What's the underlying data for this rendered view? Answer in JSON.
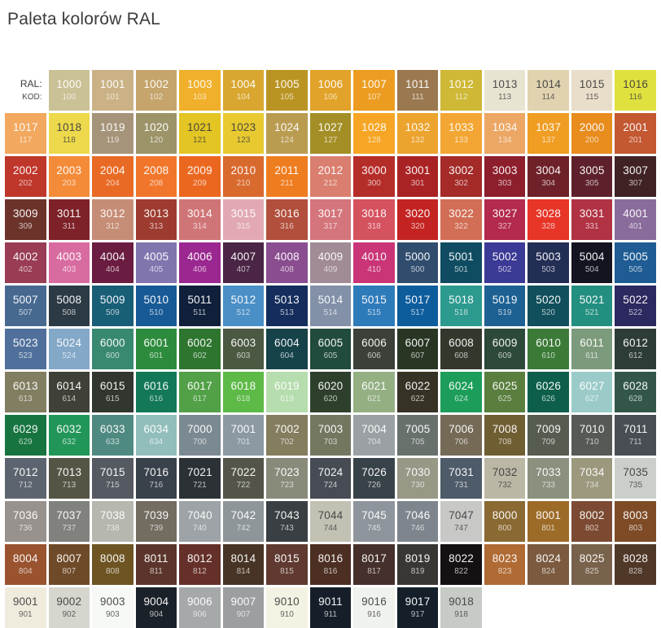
{
  "title": "Paleta kolorów RAL",
  "legend": {
    "ral_label": "RAL:",
    "kod_label": "KOD:"
  },
  "palette": {
    "rows": [
      [
        [
          "1000",
          "100",
          "#CBC196",
          0
        ],
        [
          "1001",
          "101",
          "#CAB286",
          0
        ],
        [
          "1002",
          "102",
          "#C5A56C",
          0
        ],
        [
          "1003",
          "103",
          "#F0B02B",
          0
        ],
        [
          "1004",
          "104",
          "#D9A730",
          0
        ],
        [
          "1005",
          "105",
          "#BA9423",
          0
        ],
        [
          "1006",
          "106",
          "#E2A32A",
          0
        ],
        [
          "1007",
          "107",
          "#EC9D21",
          0
        ],
        [
          "1011",
          "111",
          "#9B7950",
          0
        ],
        [
          "1012",
          "112",
          "#CEB836",
          0
        ],
        [
          "1013",
          "113",
          "#E8E4D2",
          1
        ],
        [
          "1014",
          "114",
          "#E1D3B0",
          1
        ],
        [
          "1015",
          "115",
          "#E8DEC9",
          1
        ],
        [
          "1016",
          "116",
          "#E0E13F",
          1
        ]
      ],
      [
        [
          "1017",
          "117",
          "#F2A85F",
          0
        ],
        [
          "1018",
          "118",
          "#EDD94B",
          1
        ],
        [
          "1019",
          "119",
          "#A59479",
          0
        ],
        [
          "1020",
          "120",
          "#9C9468",
          0
        ],
        [
          "1021",
          "121",
          "#E3C523",
          1
        ],
        [
          "1023",
          "123",
          "#E8CA30",
          1
        ],
        [
          "1024",
          "124",
          "#BA9C51",
          0
        ],
        [
          "1027",
          "127",
          "#A38F25",
          0
        ],
        [
          "1028",
          "128",
          "#F6A624",
          0
        ],
        [
          "1032",
          "132",
          "#ECA42F",
          0
        ],
        [
          "1033",
          "133",
          "#F3A633",
          0
        ],
        [
          "1034",
          "134",
          "#ECA765",
          0
        ],
        [
          "1037",
          "137",
          "#F09D23",
          0
        ],
        [
          "2000",
          "200",
          "#E88C1E",
          0
        ],
        [
          "2001",
          "201",
          "#C35831",
          0
        ]
      ],
      [
        [
          "2002",
          "202",
          "#BF362B",
          0
        ],
        [
          "2003",
          "203",
          "#F48B39",
          0
        ],
        [
          "2004",
          "204",
          "#E96A25",
          0
        ],
        [
          "2008",
          "208",
          "#F1762B",
          0
        ],
        [
          "2009",
          "209",
          "#EB671F",
          0
        ],
        [
          "2010",
          "210",
          "#D96A2E",
          0
        ],
        [
          "2011",
          "211",
          "#EE7D1F",
          0
        ],
        [
          "2012",
          "212",
          "#DA7F6F",
          0
        ],
        [
          "3000",
          "300",
          "#B52D29",
          0
        ],
        [
          "3001",
          "301",
          "#AA2324",
          0
        ],
        [
          "3002",
          "302",
          "#A42B28",
          0
        ],
        [
          "3003",
          "303",
          "#8D1F2C",
          0
        ],
        [
          "3004",
          "304",
          "#6E2128",
          0
        ],
        [
          "3005",
          "305",
          "#5E212B",
          0
        ],
        [
          "3007",
          "307",
          "#402225",
          0
        ]
      ],
      [
        [
          "3009",
          "309",
          "#6C332B",
          0
        ],
        [
          "3011",
          "311",
          "#7E2128",
          0
        ],
        [
          "3012",
          "312",
          "#C68D76",
          0
        ],
        [
          "3013",
          "313",
          "#9E3B30",
          0
        ],
        [
          "3014",
          "314",
          "#D07577",
          0
        ],
        [
          "3015",
          "315",
          "#E2A9B4",
          0
        ],
        [
          "3016",
          "316",
          "#B14F3C",
          0
        ],
        [
          "3017",
          "317",
          "#D4747B",
          0
        ],
        [
          "3018",
          "318",
          "#D5525F",
          0
        ],
        [
          "3020",
          "320",
          "#C32422",
          0
        ],
        [
          "3022",
          "322",
          "#D26E56",
          0
        ],
        [
          "3027",
          "327",
          "#B32A4D",
          0
        ],
        [
          "3028",
          "328",
          "#E73527",
          0
        ],
        [
          "3031",
          "331",
          "#B13243",
          0
        ],
        [
          "4001",
          "401",
          "#8A6C9C",
          0
        ]
      ],
      [
        [
          "4002",
          "402",
          "#993C54",
          0
        ],
        [
          "4003",
          "403",
          "#D86CA1",
          0
        ],
        [
          "4004",
          "404",
          "#6B1C41",
          0
        ],
        [
          "4005",
          "405",
          "#8175AE",
          0
        ],
        [
          "4006",
          "406",
          "#9B2790",
          0
        ],
        [
          "4007",
          "407",
          "#4A2545",
          0
        ],
        [
          "4008",
          "408",
          "#8A4D90",
          0
        ],
        [
          "4009",
          "409",
          "#A08B97",
          0
        ],
        [
          "4010",
          "410",
          "#C93577",
          0
        ],
        [
          "5000",
          "500",
          "#314D6E",
          0
        ],
        [
          "5001",
          "501",
          "#0F4C61",
          0
        ],
        [
          "5002",
          "502",
          "#3B3A96",
          0
        ],
        [
          "5003",
          "503",
          "#232E55",
          0
        ],
        [
          "5004",
          "504",
          "#131420",
          0
        ],
        [
          "5005",
          "505",
          "#1E5C93",
          0
        ]
      ],
      [
        [
          "5007",
          "507",
          "#476990",
          0
        ],
        [
          "5008",
          "508",
          "#2B3A44",
          0
        ],
        [
          "5009",
          "509",
          "#195E77",
          0
        ],
        [
          "5010",
          "510",
          "#185A96",
          0
        ],
        [
          "5011",
          "511",
          "#101F3A",
          0
        ],
        [
          "5012",
          "512",
          "#4A8FC6",
          0
        ],
        [
          "5013",
          "513",
          "#142D5C",
          0
        ],
        [
          "5014",
          "514",
          "#8290A8",
          0
        ],
        [
          "5015",
          "515",
          "#2E7BBA",
          0
        ],
        [
          "5017",
          "517",
          "#0D5D9D",
          0
        ],
        [
          "5018",
          "518",
          "#2D9A8F",
          0
        ],
        [
          "5019",
          "519",
          "#1D6192",
          0
        ],
        [
          "5020",
          "520",
          "#104F5B",
          0
        ],
        [
          "5021",
          "521",
          "#238F80",
          0
        ],
        [
          "5022",
          "522",
          "#2C2860",
          0
        ]
      ],
      [
        [
          "5023",
          "523",
          "#50709B",
          0
        ],
        [
          "5024",
          "524",
          "#83A8C8",
          0
        ],
        [
          "6000",
          "600",
          "#398971",
          0
        ],
        [
          "6001",
          "601",
          "#2D8B3D",
          0
        ],
        [
          "6002",
          "602",
          "#2E752F",
          0
        ],
        [
          "6003",
          "603",
          "#4C5942",
          0
        ],
        [
          "6004",
          "604",
          "#16424A",
          0
        ],
        [
          "6005",
          "605",
          "#214B3C",
          0
        ],
        [
          "6006",
          "606",
          "#3B4039",
          0
        ],
        [
          "6007",
          "607",
          "#283623",
          0
        ],
        [
          "6008",
          "608",
          "#33382C",
          0
        ],
        [
          "6009",
          "609",
          "#2D493A",
          0
        ],
        [
          "6010",
          "610",
          "#3C7A38",
          0
        ],
        [
          "6011",
          "611",
          "#7C9B7C",
          0
        ],
        [
          "6012",
          "612",
          "#2E3C38",
          0
        ]
      ],
      [
        [
          "6013",
          "613",
          "#817E61",
          0
        ],
        [
          "6014",
          "614",
          "#3F4037",
          0
        ],
        [
          "6015",
          "615",
          "#31362F",
          0
        ],
        [
          "6016",
          "616",
          "#127858",
          0
        ],
        [
          "6017",
          "617",
          "#52A047",
          0
        ],
        [
          "6018",
          "618",
          "#5DBA47",
          0
        ],
        [
          "6019",
          "619",
          "#B6DDAE",
          0
        ],
        [
          "6020",
          "620",
          "#2E402C",
          0
        ],
        [
          "6021",
          "621",
          "#94B083",
          0
        ],
        [
          "6022",
          "622",
          "#363225",
          0
        ],
        [
          "6024",
          "624",
          "#1C9E5A",
          0
        ],
        [
          "6025",
          "625",
          "#597E3E",
          0
        ],
        [
          "6026",
          "626",
          "#0D5F4B",
          0
        ],
        [
          "6027",
          "627",
          "#9BCBC8",
          0
        ],
        [
          "6028",
          "628",
          "#32574A",
          0
        ]
      ],
      [
        [
          "6029",
          "629",
          "#177440",
          0
        ],
        [
          "6032",
          "632",
          "#219658",
          0
        ],
        [
          "6033",
          "633",
          "#4F8A81",
          0
        ],
        [
          "6034",
          "634",
          "#91BEBB",
          0
        ],
        [
          "7000",
          "700",
          "#7B8992",
          0
        ],
        [
          "7001",
          "701",
          "#8C99A2",
          0
        ],
        [
          "7002",
          "702",
          "#847D5E",
          0
        ],
        [
          "7003",
          "703",
          "#737760",
          0
        ],
        [
          "7004",
          "704",
          "#9BA0A4",
          0
        ],
        [
          "7005",
          "705",
          "#69716D",
          0
        ],
        [
          "7006",
          "706",
          "#746A56",
          0
        ],
        [
          "7008",
          "708",
          "#705E33",
          0
        ],
        [
          "7009",
          "709",
          "#565D50",
          0
        ],
        [
          "7010",
          "710",
          "#555B54",
          0
        ],
        [
          "7011",
          "711",
          "#484E53",
          0
        ]
      ],
      [
        [
          "7012",
          "712",
          "#5C656F",
          0
        ],
        [
          "7013",
          "713",
          "#565545",
          0
        ],
        [
          "7015",
          "715",
          "#555A62",
          0
        ],
        [
          "7016",
          "716",
          "#39414A",
          0
        ],
        [
          "7021",
          "721",
          "#2B3135",
          0
        ],
        [
          "7022",
          "722",
          "#545548",
          0
        ],
        [
          "7023",
          "723",
          "#888B7A",
          0
        ],
        [
          "7024",
          "724",
          "#464B54",
          0
        ],
        [
          "7026",
          "726",
          "#384249",
          0
        ],
        [
          "7030",
          "730",
          "#989887",
          0
        ],
        [
          "7031",
          "731",
          "#4E5B69",
          0
        ],
        [
          "7032",
          "732",
          "#BBB7A5",
          1
        ],
        [
          "7033",
          "733",
          "#8A917E",
          0
        ],
        [
          "7034",
          "734",
          "#9B987D",
          0
        ],
        [
          "7035",
          "735",
          "#CBCFC9",
          1
        ]
      ],
      [
        [
          "7036",
          "736",
          "#98928E",
          0
        ],
        [
          "7037",
          "737",
          "#81827E",
          0
        ],
        [
          "7038",
          "738",
          "#B6B7AE",
          0
        ],
        [
          "7039",
          "739",
          "#726C61",
          0
        ],
        [
          "7040",
          "740",
          "#9DA3A6",
          0
        ],
        [
          "7042",
          "742",
          "#8F969A",
          0
        ],
        [
          "7043",
          "743",
          "#393F42",
          0
        ],
        [
          "7044",
          "744",
          "#C2C1B4",
          1
        ],
        [
          "7045",
          "745",
          "#8F959C",
          0
        ],
        [
          "7046",
          "746",
          "#7E858D",
          0
        ],
        [
          "7047",
          "747",
          "#C8C8C7",
          1
        ],
        [
          "8000",
          "800",
          "#8A6932",
          0
        ],
        [
          "8001",
          "801",
          "#9D6B28",
          0
        ],
        [
          "8002",
          "802",
          "#7C4A32",
          0
        ],
        [
          "8003",
          "803",
          "#7E4B26",
          0
        ]
      ],
      [
        [
          "8004",
          "804",
          "#99532F",
          0
        ],
        [
          "8007",
          "807",
          "#6F4A28",
          0
        ],
        [
          "8008",
          "808",
          "#6D5422",
          0
        ],
        [
          "8011",
          "811",
          "#5B352B",
          0
        ],
        [
          "8012",
          "812",
          "#653029",
          0
        ],
        [
          "8014",
          "814",
          "#483426",
          0
        ],
        [
          "8015",
          "815",
          "#603A31",
          0
        ],
        [
          "8016",
          "816",
          "#4C2E22",
          0
        ],
        [
          "8017",
          "817",
          "#45302B",
          0
        ],
        [
          "8019",
          "819",
          "#3A3634",
          0
        ],
        [
          "8022",
          "822",
          "#151112",
          0
        ],
        [
          "8023",
          "823",
          "#B06A33",
          0
        ],
        [
          "8024",
          "824",
          "#7B5A3F",
          0
        ],
        [
          "8025",
          "825",
          "#79624B",
          0
        ],
        [
          "8028",
          "828",
          "#503828",
          0
        ]
      ],
      [
        [
          "9001",
          "901",
          "#EFECDE",
          1
        ],
        [
          "9002",
          "902",
          "#D5D7CF",
          1
        ],
        [
          "9003",
          "903",
          "#F7F9F6",
          1
        ],
        [
          "9004",
          "904",
          "#1B2128",
          0
        ],
        [
          "9006",
          "906",
          "#A6A9AA",
          0
        ],
        [
          "9007",
          "907",
          "#9C9FA0",
          0
        ],
        [
          "9010",
          "910",
          "#F4F2E3",
          1
        ],
        [
          "9011",
          "911",
          "#161F29",
          0
        ],
        [
          "9016",
          "916",
          "#F0F2EE",
          1
        ],
        [
          "9017",
          "917",
          "#141F2A",
          0
        ],
        [
          "9018",
          "918",
          "#C7CBC6",
          1
        ]
      ]
    ]
  }
}
